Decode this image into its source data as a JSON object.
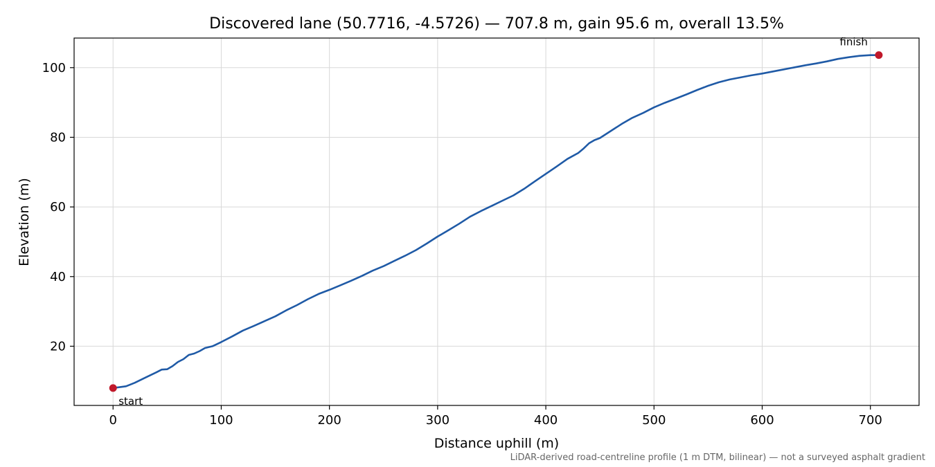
{
  "chart_data": {
    "type": "line",
    "title": "Discovered lane (50.7716, -4.5726) — 707.8 m, gain 95.6 m, overall 13.5%",
    "xlabel": "Distance uphill (m)",
    "ylabel": "Elevation (m)",
    "xlim": [
      -36,
      745
    ],
    "ylim": [
      3,
      108.5
    ],
    "xticks": [
      0,
      100,
      200,
      300,
      400,
      500,
      600,
      700
    ],
    "yticks": [
      20,
      40,
      60,
      80,
      100
    ],
    "grid": true,
    "line_color": "#1f5aa6",
    "marker_color": "#c0182a",
    "series": [
      {
        "x": [
          0,
          5,
          12,
          20,
          30,
          40,
          45,
          50,
          55,
          60,
          65,
          70,
          75,
          80,
          85,
          88,
          92,
          100,
          110,
          120,
          130,
          140,
          150,
          160,
          170,
          180,
          190,
          200,
          210,
          220,
          230,
          240,
          250,
          260,
          270,
          280,
          290,
          300,
          310,
          320,
          330,
          340,
          350,
          360,
          370,
          380,
          390,
          400,
          410,
          420,
          430,
          435,
          440,
          445,
          450,
          460,
          470,
          480,
          490,
          500,
          510,
          520,
          530,
          540,
          550,
          560,
          570,
          580,
          590,
          600,
          610,
          620,
          630,
          640,
          650,
          660,
          670,
          680,
          690,
          700,
          707.8
        ],
        "y": [
          8.0,
          8.2,
          8.5,
          9.5,
          11.0,
          12.5,
          13.3,
          13.4,
          14.3,
          15.5,
          16.3,
          17.5,
          17.9,
          18.6,
          19.5,
          19.7,
          20.0,
          21.2,
          22.8,
          24.5,
          25.8,
          27.2,
          28.6,
          30.3,
          31.8,
          33.5,
          35.0,
          36.2,
          37.5,
          38.8,
          40.2,
          41.7,
          43.0,
          44.5,
          46.0,
          47.6,
          49.5,
          51.5,
          53.3,
          55.2,
          57.2,
          58.8,
          60.3,
          61.8,
          63.3,
          65.2,
          67.4,
          69.5,
          71.6,
          73.8,
          75.5,
          76.8,
          78.3,
          79.2,
          79.8,
          81.8,
          83.8,
          85.6,
          87.0,
          88.6,
          89.9,
          91.1,
          92.3,
          93.6,
          94.8,
          95.8,
          96.6,
          97.2,
          97.8,
          98.3,
          98.9,
          99.5,
          100.1,
          100.7,
          101.2,
          101.8,
          102.5,
          103.0,
          103.4,
          103.6,
          103.6
        ]
      }
    ],
    "annotations": [
      {
        "text": "start",
        "x": 0,
        "y": 8.0,
        "anchor": "below-right"
      },
      {
        "text": "finish",
        "x": 707.8,
        "y": 103.6,
        "anchor": "above-left"
      }
    ],
    "caption": "LiDAR-derived road-centreline profile (1 m DTM, bilinear) — not a surveyed asphalt gradient"
  }
}
